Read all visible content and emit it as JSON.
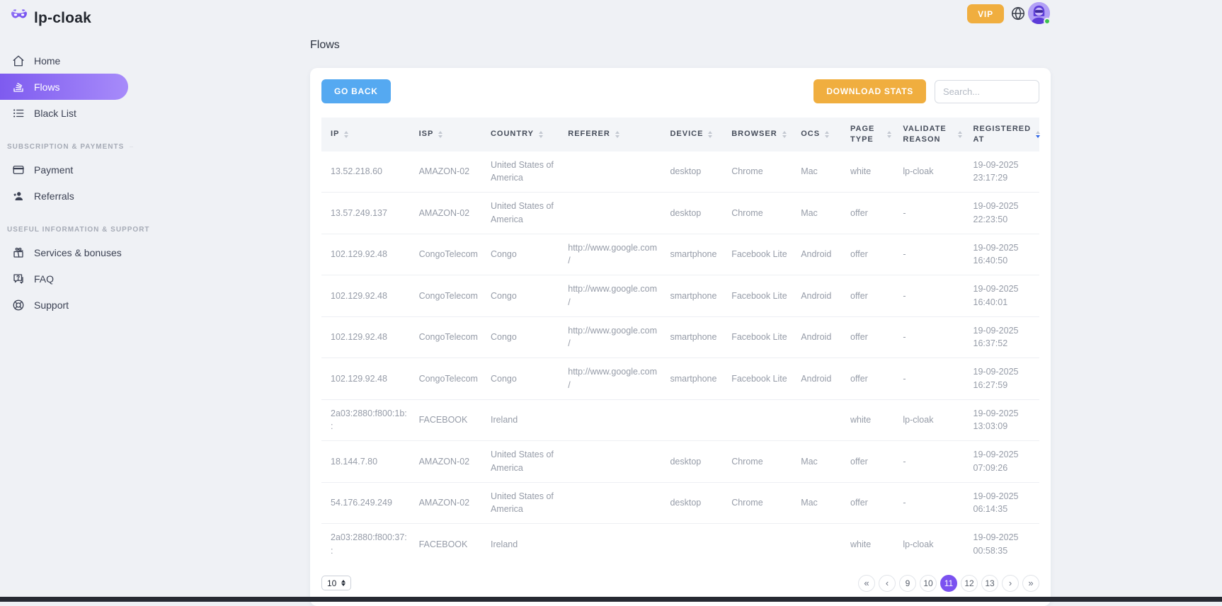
{
  "brand": {
    "name": "lp-cloak"
  },
  "topbar": {
    "vip_label": "VIP"
  },
  "colors": {
    "accent_purple": "#7b52f0",
    "accent_orange": "#f0ae3f",
    "accent_blue": "#55a9f1",
    "active_item_gradient": [
      "#7e5bef",
      "#a78bfa"
    ],
    "online_status_green": "#3fc14f"
  },
  "sidebar": {
    "items": [
      {
        "label": "Home",
        "icon": "home-icon",
        "active": false
      },
      {
        "label": "Flows",
        "icon": "flows-icon",
        "active": true
      },
      {
        "label": "Black List",
        "icon": "black-list-icon",
        "active": false
      }
    ],
    "sections": [
      {
        "title": "SUBSCRIPTION & PAYMENTS",
        "items": [
          {
            "label": "Payment",
            "icon": "payment-icon"
          },
          {
            "label": "Referrals",
            "icon": "referrals-icon"
          }
        ]
      },
      {
        "title": "USEFUL INFORMATION & SUPPORT",
        "items": [
          {
            "label": "Services & bonuses",
            "icon": "gift-icon"
          },
          {
            "label": "FAQ",
            "icon": "faq-icon"
          },
          {
            "label": "Support",
            "icon": "support-icon"
          }
        ]
      }
    ]
  },
  "page": {
    "title": "Flows"
  },
  "toolbar": {
    "go_back_label": "GO BACK",
    "download_stats_label": "DOWNLOAD STATS",
    "search_placeholder": "Search..."
  },
  "table": {
    "columns": [
      {
        "key": "ip",
        "label": "IP",
        "sortable": true,
        "sorted": null,
        "width": "11.5%"
      },
      {
        "key": "isp",
        "label": "ISP",
        "sortable": true,
        "sorted": null,
        "width": "9%"
      },
      {
        "key": "country",
        "label": "COUNTRY",
        "sortable": true,
        "sorted": null,
        "width": "9.7%"
      },
      {
        "key": "referer",
        "label": "REFERER",
        "sortable": true,
        "sorted": null,
        "width": "12.8%"
      },
      {
        "key": "device",
        "label": "DEVICE",
        "sortable": true,
        "sorted": null,
        "width": "7.7%"
      },
      {
        "key": "browser",
        "label": "BROWSER",
        "sortable": true,
        "sorted": null,
        "width": "8.7%"
      },
      {
        "key": "ocs",
        "label": "OCS",
        "sortable": true,
        "sorted": null,
        "width": "6.2%"
      },
      {
        "key": "page_type",
        "label": "PAGE TYPE",
        "sortable": true,
        "sorted": null,
        "width": "6.6%"
      },
      {
        "key": "validate_reason",
        "label": "VALIDATE REASON",
        "sortable": true,
        "sorted": null,
        "width": "8.8%"
      },
      {
        "key": "registered_at",
        "label": "REGISTERED AT",
        "sortable": true,
        "sorted": "desc",
        "width": "9%"
      }
    ],
    "rows": [
      {
        "ip": "13.52.218.60",
        "isp": "AMAZON-02",
        "country": "United States of America",
        "referer": "",
        "device": "desktop",
        "browser": "Chrome",
        "ocs": "Mac",
        "page_type": "white",
        "validate_reason": "lp-cloak",
        "registered_at": "19-09-2025 23:17:29"
      },
      {
        "ip": "13.57.249.137",
        "isp": "AMAZON-02",
        "country": "United States of America",
        "referer": "",
        "device": "desktop",
        "browser": "Chrome",
        "ocs": "Mac",
        "page_type": "offer",
        "validate_reason": "-",
        "registered_at": "19-09-2025 22:23:50"
      },
      {
        "ip": "102.129.92.48",
        "isp": "CongoTelecom",
        "country": "Congo",
        "referer": "http://www.google.com/",
        "device": "smartphone",
        "browser": "Facebook Lite",
        "ocs": "Android",
        "page_type": "offer",
        "validate_reason": "-",
        "registered_at": "19-09-2025 16:40:50"
      },
      {
        "ip": "102.129.92.48",
        "isp": "CongoTelecom",
        "country": "Congo",
        "referer": "http://www.google.com/",
        "device": "smartphone",
        "browser": "Facebook Lite",
        "ocs": "Android",
        "page_type": "offer",
        "validate_reason": "-",
        "registered_at": "19-09-2025 16:40:01"
      },
      {
        "ip": "102.129.92.48",
        "isp": "CongoTelecom",
        "country": "Congo",
        "referer": "http://www.google.com/",
        "device": "smartphone",
        "browser": "Facebook Lite",
        "ocs": "Android",
        "page_type": "offer",
        "validate_reason": "-",
        "registered_at": "19-09-2025 16:37:52"
      },
      {
        "ip": "102.129.92.48",
        "isp": "CongoTelecom",
        "country": "Congo",
        "referer": "http://www.google.com/",
        "device": "smartphone",
        "browser": "Facebook Lite",
        "ocs": "Android",
        "page_type": "offer",
        "validate_reason": "-",
        "registered_at": "19-09-2025 16:27:59"
      },
      {
        "ip": "2a03:2880:f800:1b::",
        "isp": "FACEBOOK",
        "country": "Ireland",
        "referer": "",
        "device": "",
        "browser": "",
        "ocs": "",
        "page_type": "white",
        "validate_reason": "lp-cloak",
        "registered_at": "19-09-2025 13:03:09"
      },
      {
        "ip": "18.144.7.80",
        "isp": "AMAZON-02",
        "country": "United States of America",
        "referer": "",
        "device": "desktop",
        "browser": "Chrome",
        "ocs": "Mac",
        "page_type": "offer",
        "validate_reason": "-",
        "registered_at": "19-09-2025 07:09:26"
      },
      {
        "ip": "54.176.249.249",
        "isp": "AMAZON-02",
        "country": "United States of America",
        "referer": "",
        "device": "desktop",
        "browser": "Chrome",
        "ocs": "Mac",
        "page_type": "offer",
        "validate_reason": "-",
        "registered_at": "19-09-2025 06:14:35"
      },
      {
        "ip": "2a03:2880:f800:37::",
        "isp": "FACEBOOK",
        "country": "Ireland",
        "referer": "",
        "device": "",
        "browser": "",
        "ocs": "",
        "page_type": "white",
        "validate_reason": "lp-cloak",
        "registered_at": "19-09-2025 00:58:35"
      }
    ]
  },
  "pagination": {
    "per_page": "10",
    "first_label": "«",
    "prev_label": "‹",
    "pages": [
      "9",
      "10",
      "11",
      "12",
      "13"
    ],
    "active_page": "11",
    "next_label": "›",
    "last_label": "»"
  }
}
